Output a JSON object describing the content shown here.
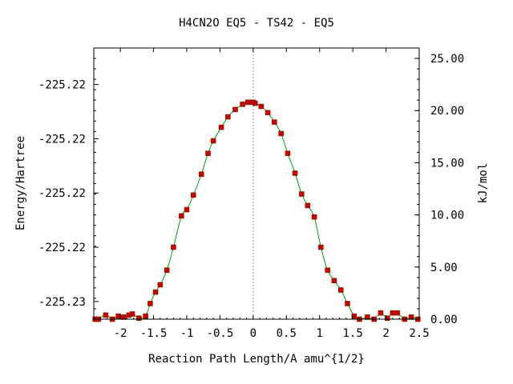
{
  "chart_data": {
    "type": "line",
    "title": "H4CN2O   EQ5 - TS42 - EQ5",
    "xlabel": "Reaction Path Length/A amu^{1/2}",
    "ylabel_left": "Energy/Hartree",
    "ylabel_right": "kJ/mol",
    "xlim": [
      -2.4,
      2.5
    ],
    "right_ylim": [
      0.0,
      26.0
    ],
    "x_ticks": [
      -2,
      -1.5,
      -1,
      -0.5,
      0,
      0.5,
      1,
      1.5,
      2,
      2.5
    ],
    "x_tick_labels": [
      "-2",
      "-1.5",
      "-1",
      "-0.5",
      "0",
      "0.5",
      "1",
      "1.5",
      "2",
      "2.5"
    ],
    "right_ticks": [
      0,
      5,
      10,
      15,
      20,
      25
    ],
    "right_tick_labels": [
      "0.00",
      "5.00",
      "10.00",
      "15.00",
      "20.00",
      "25.00"
    ],
    "left_ticks_kjmol": [
      1.7,
      6.9,
      12.1,
      17.3,
      22.5
    ],
    "left_tick_labels": [
      "-225.23",
      "-225.22",
      "-225.22",
      "-225.22",
      "-225.22"
    ],
    "ts_marker_x": 0,
    "line_color": "#00a000",
    "marker_color": "#cc0000",
    "series": [
      {
        "x": [
          -2.38,
          -2.35,
          -2.33,
          -2.22,
          -2.12,
          -2.03,
          -1.95,
          -1.87,
          -1.82,
          -1.72,
          -1.62,
          -1.55,
          -1.47,
          -1.4,
          -1.3,
          -1.2,
          -1.08,
          -1.0,
          -0.9,
          -0.78,
          -0.68,
          -0.6,
          -0.48,
          -0.38,
          -0.27,
          -0.16,
          -0.08,
          -0.02,
          0.0,
          0.03,
          0.12,
          0.22,
          0.32,
          0.42,
          0.52,
          0.63,
          0.73,
          0.82,
          0.92,
          1.02,
          1.12,
          1.22,
          1.32,
          1.42,
          1.52,
          1.6,
          1.72,
          1.82,
          1.92,
          2.02,
          2.1,
          2.17,
          2.28,
          2.38,
          2.48
        ],
        "y": [
          0.0,
          0.0,
          0.0,
          0.4,
          0.0,
          0.3,
          0.2,
          0.4,
          0.5,
          0.1,
          0.3,
          1.5,
          2.6,
          3.3,
          4.7,
          6.9,
          9.9,
          10.5,
          11.9,
          13.9,
          15.9,
          17.1,
          18.4,
          19.4,
          20.1,
          20.6,
          20.8,
          20.8,
          20.8,
          20.7,
          20.4,
          19.8,
          18.9,
          17.8,
          15.9,
          14.0,
          12.0,
          10.9,
          9.8,
          6.9,
          4.7,
          3.7,
          2.8,
          1.5,
          0.3,
          0.0,
          0.2,
          0.0,
          0.6,
          0.1,
          0.6,
          0.6,
          0.0,
          0.2,
          0.0
        ]
      }
    ]
  }
}
